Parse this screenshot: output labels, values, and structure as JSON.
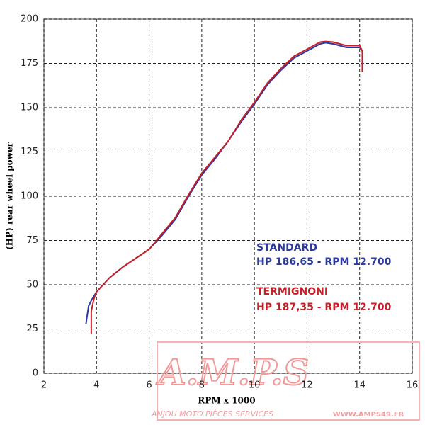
{
  "chart_data": {
    "type": "line",
    "xlabel": "RPM x 1000",
    "ylabel": "(HP) rear wheel power",
    "xlim": [
      2,
      16
    ],
    "xticks": [
      2,
      4,
      6,
      8,
      10,
      12,
      14,
      16
    ],
    "ylim": [
      0,
      200
    ],
    "yticks": [
      0,
      25,
      50,
      75,
      100,
      125,
      150,
      175,
      200
    ],
    "grid": true,
    "series": [
      {
        "name": "STANDARD",
        "color": "#2b3a9e",
        "x": [
          3.6,
          3.7,
          3.8,
          4.0,
          4.5,
          5.0,
          5.5,
          6.0,
          6.5,
          7.0,
          7.5,
          8.0,
          8.5,
          9.0,
          9.5,
          10.0,
          10.5,
          11.0,
          11.5,
          12.0,
          12.5,
          12.7,
          13.0,
          13.5,
          14.0,
          14.1
        ],
        "values": [
          28,
          38,
          41,
          46,
          54,
          60,
          65,
          70,
          78,
          87,
          100,
          112,
          121,
          131,
          142,
          152,
          163,
          171,
          178,
          182,
          186,
          186.65,
          186,
          184,
          184,
          182
        ]
      },
      {
        "name": "TERMIGNONI",
        "color": "#c8202a",
        "x": [
          3.8,
          3.8,
          3.9,
          4.0,
          4.5,
          5.0,
          5.5,
          6.0,
          6.5,
          7.0,
          7.5,
          8.0,
          8.5,
          9.0,
          9.5,
          10.0,
          10.5,
          11.0,
          11.5,
          12.0,
          12.5,
          12.7,
          13.0,
          13.5,
          14.0,
          14.1,
          14.1
        ],
        "values": [
          22,
          35,
          42,
          46,
          54,
          60,
          65,
          70,
          79,
          88,
          101,
          113,
          122,
          131,
          143,
          153,
          164,
          172,
          179,
          183,
          187,
          187.35,
          187,
          185,
          185,
          182,
          170
        ]
      }
    ],
    "annotations": [
      "HP 186,65 - RPM 12.700",
      "HP 187,35 - RPM 12.700"
    ],
    "watermark": [
      "A.M.P.S",
      "ANJOU MOTO PIÈCES SERVICES",
      "WWW.AMPS49.FR"
    ]
  }
}
